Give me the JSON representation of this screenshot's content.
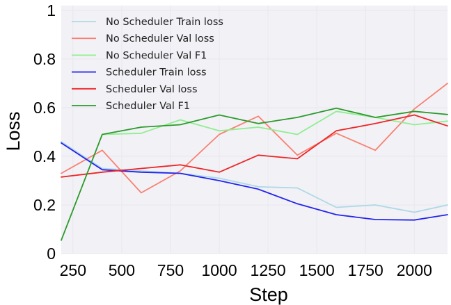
{
  "chart_data": {
    "type": "line",
    "xlabel": "Step",
    "ylabel": "Loss",
    "xlim": [
      190,
      2170
    ],
    "ylim": [
      0,
      1.02
    ],
    "xticks": [
      250,
      500,
      750,
      1000,
      1250,
      1500,
      1750,
      2000
    ],
    "yticks": [
      0,
      0.2,
      0.4,
      0.6,
      0.8,
      1
    ],
    "ytick_labels": [
      "0",
      "0.2",
      "0.4",
      "0.6",
      "0.8",
      "1"
    ],
    "grid": true,
    "grid_color": "#e9e9ef",
    "plot_background": "#f1f1f6",
    "legend_position": "top-left",
    "series": [
      {
        "name": "No Scheduler Train loss",
        "color": "#add8e6",
        "x": [
          190,
          400,
          600,
          800,
          1000,
          1200,
          1400,
          1600,
          1800,
          2000,
          2170
        ],
        "y": [
          0.46,
          0.35,
          0.34,
          0.33,
          0.31,
          0.275,
          0.27,
          0.19,
          0.2,
          0.17,
          0.2
        ]
      },
      {
        "name": "No Scheduler Val loss",
        "color": "#fa8072",
        "x": [
          190,
          400,
          600,
          800,
          1000,
          1200,
          1400,
          1600,
          1800,
          2000,
          2170
        ],
        "y": [
          0.33,
          0.425,
          0.25,
          0.34,
          0.49,
          0.565,
          0.405,
          0.495,
          0.425,
          0.595,
          0.7
        ]
      },
      {
        "name": "No Scheduler Val F1",
        "color": "#90ee90",
        "x": [
          400,
          600,
          800,
          1000,
          1200,
          1400,
          1600,
          1800,
          2000,
          2170
        ],
        "y": [
          0.49,
          0.495,
          0.55,
          0.505,
          0.52,
          0.49,
          0.585,
          0.56,
          0.53,
          0.545
        ]
      },
      {
        "name": "Scheduler Train loss",
        "color": "#2323ee",
        "x": [
          190,
          400,
          600,
          800,
          1000,
          1200,
          1400,
          1600,
          1800,
          2000,
          2170
        ],
        "y": [
          0.455,
          0.345,
          0.335,
          0.33,
          0.3,
          0.265,
          0.205,
          0.16,
          0.14,
          0.138,
          0.16
        ]
      },
      {
        "name": "Scheduler Val loss",
        "color": "#ee2525",
        "x": [
          190,
          400,
          600,
          800,
          1000,
          1200,
          1400,
          1600,
          1800,
          2000,
          2170
        ],
        "y": [
          0.315,
          0.335,
          0.35,
          0.365,
          0.335,
          0.405,
          0.39,
          0.505,
          0.535,
          0.57,
          0.525
        ]
      },
      {
        "name": "Scheduler Val F1",
        "color": "#2b9a2b",
        "x": [
          190,
          400,
          600,
          800,
          1000,
          1200,
          1400,
          1600,
          1800,
          2000,
          2170
        ],
        "y": [
          0.055,
          0.49,
          0.52,
          0.53,
          0.57,
          0.535,
          0.56,
          0.598,
          0.56,
          0.585,
          0.572
        ]
      }
    ]
  }
}
